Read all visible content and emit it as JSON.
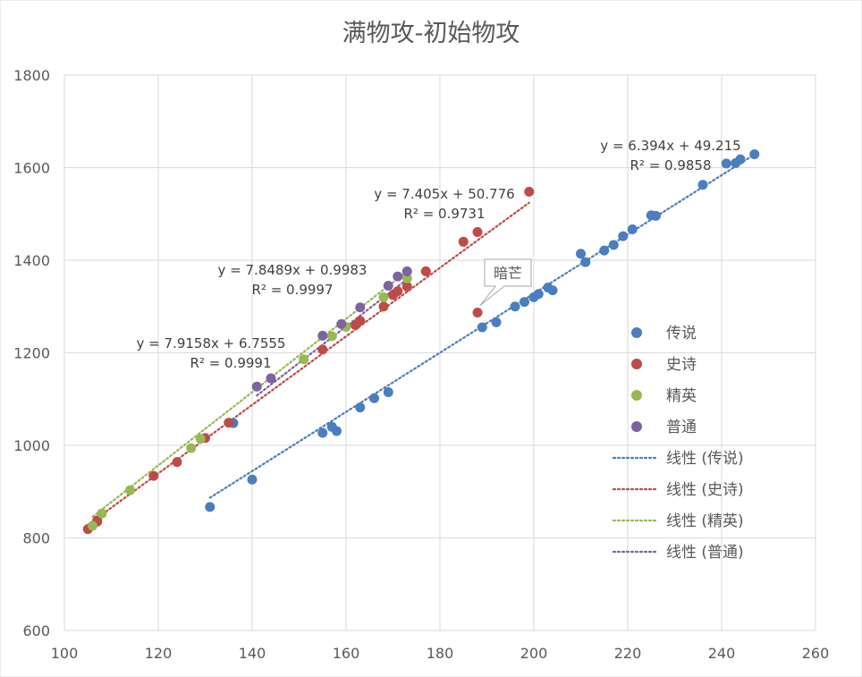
{
  "chart_data": {
    "type": "scatter",
    "title": "满物攻-初始物攻",
    "xlabel": "",
    "ylabel": "",
    "xlim": [
      100,
      260
    ],
    "ylim": [
      600,
      1800
    ],
    "x_ticks": [
      100,
      120,
      140,
      160,
      180,
      200,
      220,
      240,
      260
    ],
    "y_ticks": [
      600,
      800,
      1000,
      1200,
      1400,
      1600,
      1800
    ],
    "grid": true,
    "legend_position": "right",
    "series": [
      {
        "name": "传说",
        "color": "#4a7ebf",
        "points": [
          [
            131,
            867
          ],
          [
            136,
            1048
          ],
          [
            140,
            926
          ],
          [
            155,
            1027
          ],
          [
            157,
            1040
          ],
          [
            158,
            1031
          ],
          [
            163,
            1082
          ],
          [
            166,
            1102
          ],
          [
            169,
            1115
          ],
          [
            189,
            1255
          ],
          [
            192,
            1266
          ],
          [
            196,
            1300
          ],
          [
            198,
            1310
          ],
          [
            200,
            1320
          ],
          [
            201,
            1327
          ],
          [
            203,
            1341
          ],
          [
            204,
            1335
          ],
          [
            210,
            1414
          ],
          [
            211,
            1396
          ],
          [
            215,
            1421
          ],
          [
            217,
            1433
          ],
          [
            219,
            1452
          ],
          [
            221,
            1467
          ],
          [
            225,
            1497
          ],
          [
            226,
            1496
          ],
          [
            236,
            1563
          ],
          [
            241,
            1609
          ],
          [
            243,
            1610
          ],
          [
            244,
            1618
          ],
          [
            247,
            1629
          ]
        ]
      },
      {
        "name": "史诗",
        "color": "#be4b48",
        "points": [
          [
            105,
            819
          ],
          [
            107,
            838
          ],
          [
            107,
            835
          ],
          [
            119,
            934
          ],
          [
            124,
            964
          ],
          [
            130,
            1016
          ],
          [
            135,
            1049
          ],
          [
            155,
            1207
          ],
          [
            162,
            1260
          ],
          [
            163,
            1269
          ],
          [
            168,
            1300
          ],
          [
            170,
            1325
          ],
          [
            171,
            1333
          ],
          [
            173,
            1343
          ],
          [
            177,
            1376
          ],
          [
            185,
            1440
          ],
          [
            188,
            1461
          ],
          [
            199,
            1548
          ],
          [
            188,
            1287
          ]
        ]
      },
      {
        "name": "精英",
        "color": "#97b954",
        "points": [
          [
            106,
            826
          ],
          [
            108,
            853
          ],
          [
            114,
            903
          ],
          [
            127,
            994
          ],
          [
            129,
            1014
          ],
          [
            151,
            1186
          ],
          [
            157,
            1236
          ],
          [
            160,
            1256
          ],
          [
            168,
            1320
          ],
          [
            173,
            1361
          ]
        ]
      },
      {
        "name": "普通",
        "color": "#7e62a1",
        "points": [
          [
            141,
            1127
          ],
          [
            144,
            1145
          ],
          [
            155,
            1237
          ],
          [
            159,
            1262
          ],
          [
            163,
            1298
          ],
          [
            169,
            1345
          ],
          [
            171,
            1365
          ],
          [
            173,
            1376
          ]
        ]
      }
    ],
    "trendlines": [
      {
        "legend": "线性 (传说)",
        "color": "#4a7ebf",
        "slope": 6.394,
        "intercept": 49.215,
        "x_range": [
          131,
          247
        ],
        "equation": "y = 6.394x + 49.215",
        "r2": "R² = 0.9858"
      },
      {
        "legend": "线性 (史诗)",
        "color": "#be4b48",
        "slope": 7.405,
        "intercept": 50.776,
        "x_range": [
          105,
          199
        ],
        "equation": "y = 7.405x + 50.776",
        "r2": "R² = 0.9731"
      },
      {
        "legend": "线性 (精英)",
        "color": "#97b954",
        "slope": 7.9158,
        "intercept": 6.7555,
        "x_range": [
          106,
          173
        ],
        "equation": "y = 7.9158x + 6.7555",
        "r2": "R² = 0.9991"
      },
      {
        "legend": "线性 (普通)",
        "color": "#7e62a1",
        "slope": 7.8489,
        "intercept": 0.9983,
        "x_range": [
          141,
          173
        ],
        "equation": "y = 7.8489x + 0.9983",
        "r2": "R² = 0.9997"
      }
    ],
    "annotations": [
      {
        "text": "暗芒",
        "series": "史诗",
        "x": 188,
        "y": 1287
      }
    ]
  }
}
